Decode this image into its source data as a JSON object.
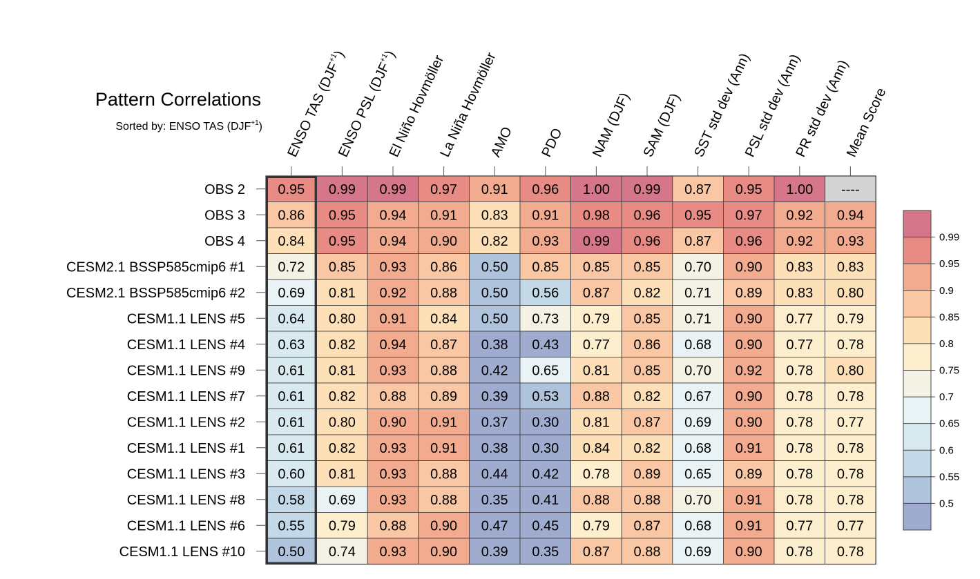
{
  "chart_data": {
    "type": "heatmap",
    "title": "Pattern Correlations",
    "subtitle": {
      "prefix": "Sorted by: ",
      "name": "ENSO TAS (DJF",
      "sup": "+1",
      "suffix": ")"
    },
    "columns": [
      {
        "label": "ENSO TAS (DJF",
        "sup": "+1",
        "suffix": ")"
      },
      {
        "label": "ENSO PSL (DJF",
        "sup": "+1",
        "suffix": ")"
      },
      {
        "label": "El Niño Hovmöller"
      },
      {
        "label": "La Niña Hovmöller"
      },
      {
        "label": "AMO"
      },
      {
        "label": "PDO"
      },
      {
        "label": "NAM (DJF)"
      },
      {
        "label": "SAM (DJF)"
      },
      {
        "label": "SST std dev (Ann)"
      },
      {
        "label": "PSL std dev (Ann)"
      },
      {
        "label": "PR std dev (Ann)"
      },
      {
        "label": "Mean Score"
      }
    ],
    "rows": [
      "OBS 2",
      "OBS 3",
      "OBS 4",
      "CESM2.1 BSSP585cmip6 #1",
      "CESM2.1 BSSP585cmip6 #2",
      "CESM1.1 LENS #5",
      "CESM1.1 LENS #4",
      "CESM1.1 LENS #9",
      "CESM1.1 LENS #7",
      "CESM1.1 LENS #2",
      "CESM1.1 LENS #1",
      "CESM1.1 LENS #3",
      "CESM1.1 LENS #8",
      "CESM1.1 LENS #6",
      "CESM1.1 LENS #10"
    ],
    "values": [
      [
        "0.95",
        "0.99",
        "0.99",
        "0.97",
        "0.91",
        "0.96",
        "1.00",
        "0.99",
        "0.87",
        "0.95",
        "1.00",
        "----"
      ],
      [
        "0.86",
        "0.95",
        "0.94",
        "0.91",
        "0.83",
        "0.91",
        "0.98",
        "0.96",
        "0.95",
        "0.97",
        "0.92",
        "0.94"
      ],
      [
        "0.84",
        "0.95",
        "0.94",
        "0.90",
        "0.82",
        "0.93",
        "0.99",
        "0.96",
        "0.87",
        "0.96",
        "0.92",
        "0.93"
      ],
      [
        "0.72",
        "0.85",
        "0.93",
        "0.86",
        "0.50",
        "0.85",
        "0.85",
        "0.85",
        "0.70",
        "0.90",
        "0.83",
        "0.83"
      ],
      [
        "0.69",
        "0.81",
        "0.92",
        "0.88",
        "0.50",
        "0.56",
        "0.87",
        "0.82",
        "0.71",
        "0.89",
        "0.83",
        "0.80"
      ],
      [
        "0.64",
        "0.80",
        "0.91",
        "0.84",
        "0.50",
        "0.73",
        "0.79",
        "0.85",
        "0.71",
        "0.90",
        "0.77",
        "0.79"
      ],
      [
        "0.63",
        "0.82",
        "0.94",
        "0.87",
        "0.38",
        "0.43",
        "0.77",
        "0.86",
        "0.68",
        "0.90",
        "0.77",
        "0.78"
      ],
      [
        "0.61",
        "0.81",
        "0.93",
        "0.88",
        "0.42",
        "0.65",
        "0.81",
        "0.85",
        "0.70",
        "0.92",
        "0.78",
        "0.80"
      ],
      [
        "0.61",
        "0.82",
        "0.88",
        "0.89",
        "0.39",
        "0.53",
        "0.88",
        "0.82",
        "0.67",
        "0.90",
        "0.78",
        "0.78"
      ],
      [
        "0.61",
        "0.80",
        "0.90",
        "0.91",
        "0.37",
        "0.30",
        "0.81",
        "0.87",
        "0.69",
        "0.90",
        "0.78",
        "0.77"
      ],
      [
        "0.61",
        "0.82",
        "0.93",
        "0.91",
        "0.38",
        "0.30",
        "0.84",
        "0.82",
        "0.68",
        "0.91",
        "0.78",
        "0.78"
      ],
      [
        "0.60",
        "0.81",
        "0.93",
        "0.88",
        "0.44",
        "0.42",
        "0.78",
        "0.89",
        "0.65",
        "0.89",
        "0.78",
        "0.78"
      ],
      [
        "0.58",
        "0.69",
        "0.93",
        "0.88",
        "0.35",
        "0.41",
        "0.88",
        "0.88",
        "0.70",
        "0.91",
        "0.78",
        "0.78"
      ],
      [
        "0.55",
        "0.79",
        "0.88",
        "0.90",
        "0.47",
        "0.45",
        "0.79",
        "0.87",
        "0.68",
        "0.91",
        "0.77",
        "0.77"
      ],
      [
        "0.50",
        "0.74",
        "0.93",
        "0.90",
        "0.39",
        "0.35",
        "0.87",
        "0.88",
        "0.69",
        "0.90",
        "0.78",
        "0.78"
      ]
    ],
    "sorted_column_index": 0,
    "missing_color": "#d3d3d3",
    "colorbar": {
      "levels": [
        0.5,
        0.55,
        0.6,
        0.65,
        0.7,
        0.75,
        0.8,
        0.85,
        0.9,
        0.95,
        0.99
      ],
      "tick_labels": [
        "0.5",
        "0.55",
        "0.6",
        "0.65",
        "0.7",
        "0.75",
        "0.8",
        "0.85",
        "0.9",
        "0.95",
        "0.99"
      ],
      "colors": [
        "#9facd0",
        "#afc3dd",
        "#c3d9e8",
        "#d8e9f0",
        "#e9f3f5",
        "#f3f2e5",
        "#fdeecd",
        "#fde0b8",
        "#f9c7a3",
        "#f2ab8f",
        "#e88b85",
        "#d5768b"
      ]
    }
  }
}
